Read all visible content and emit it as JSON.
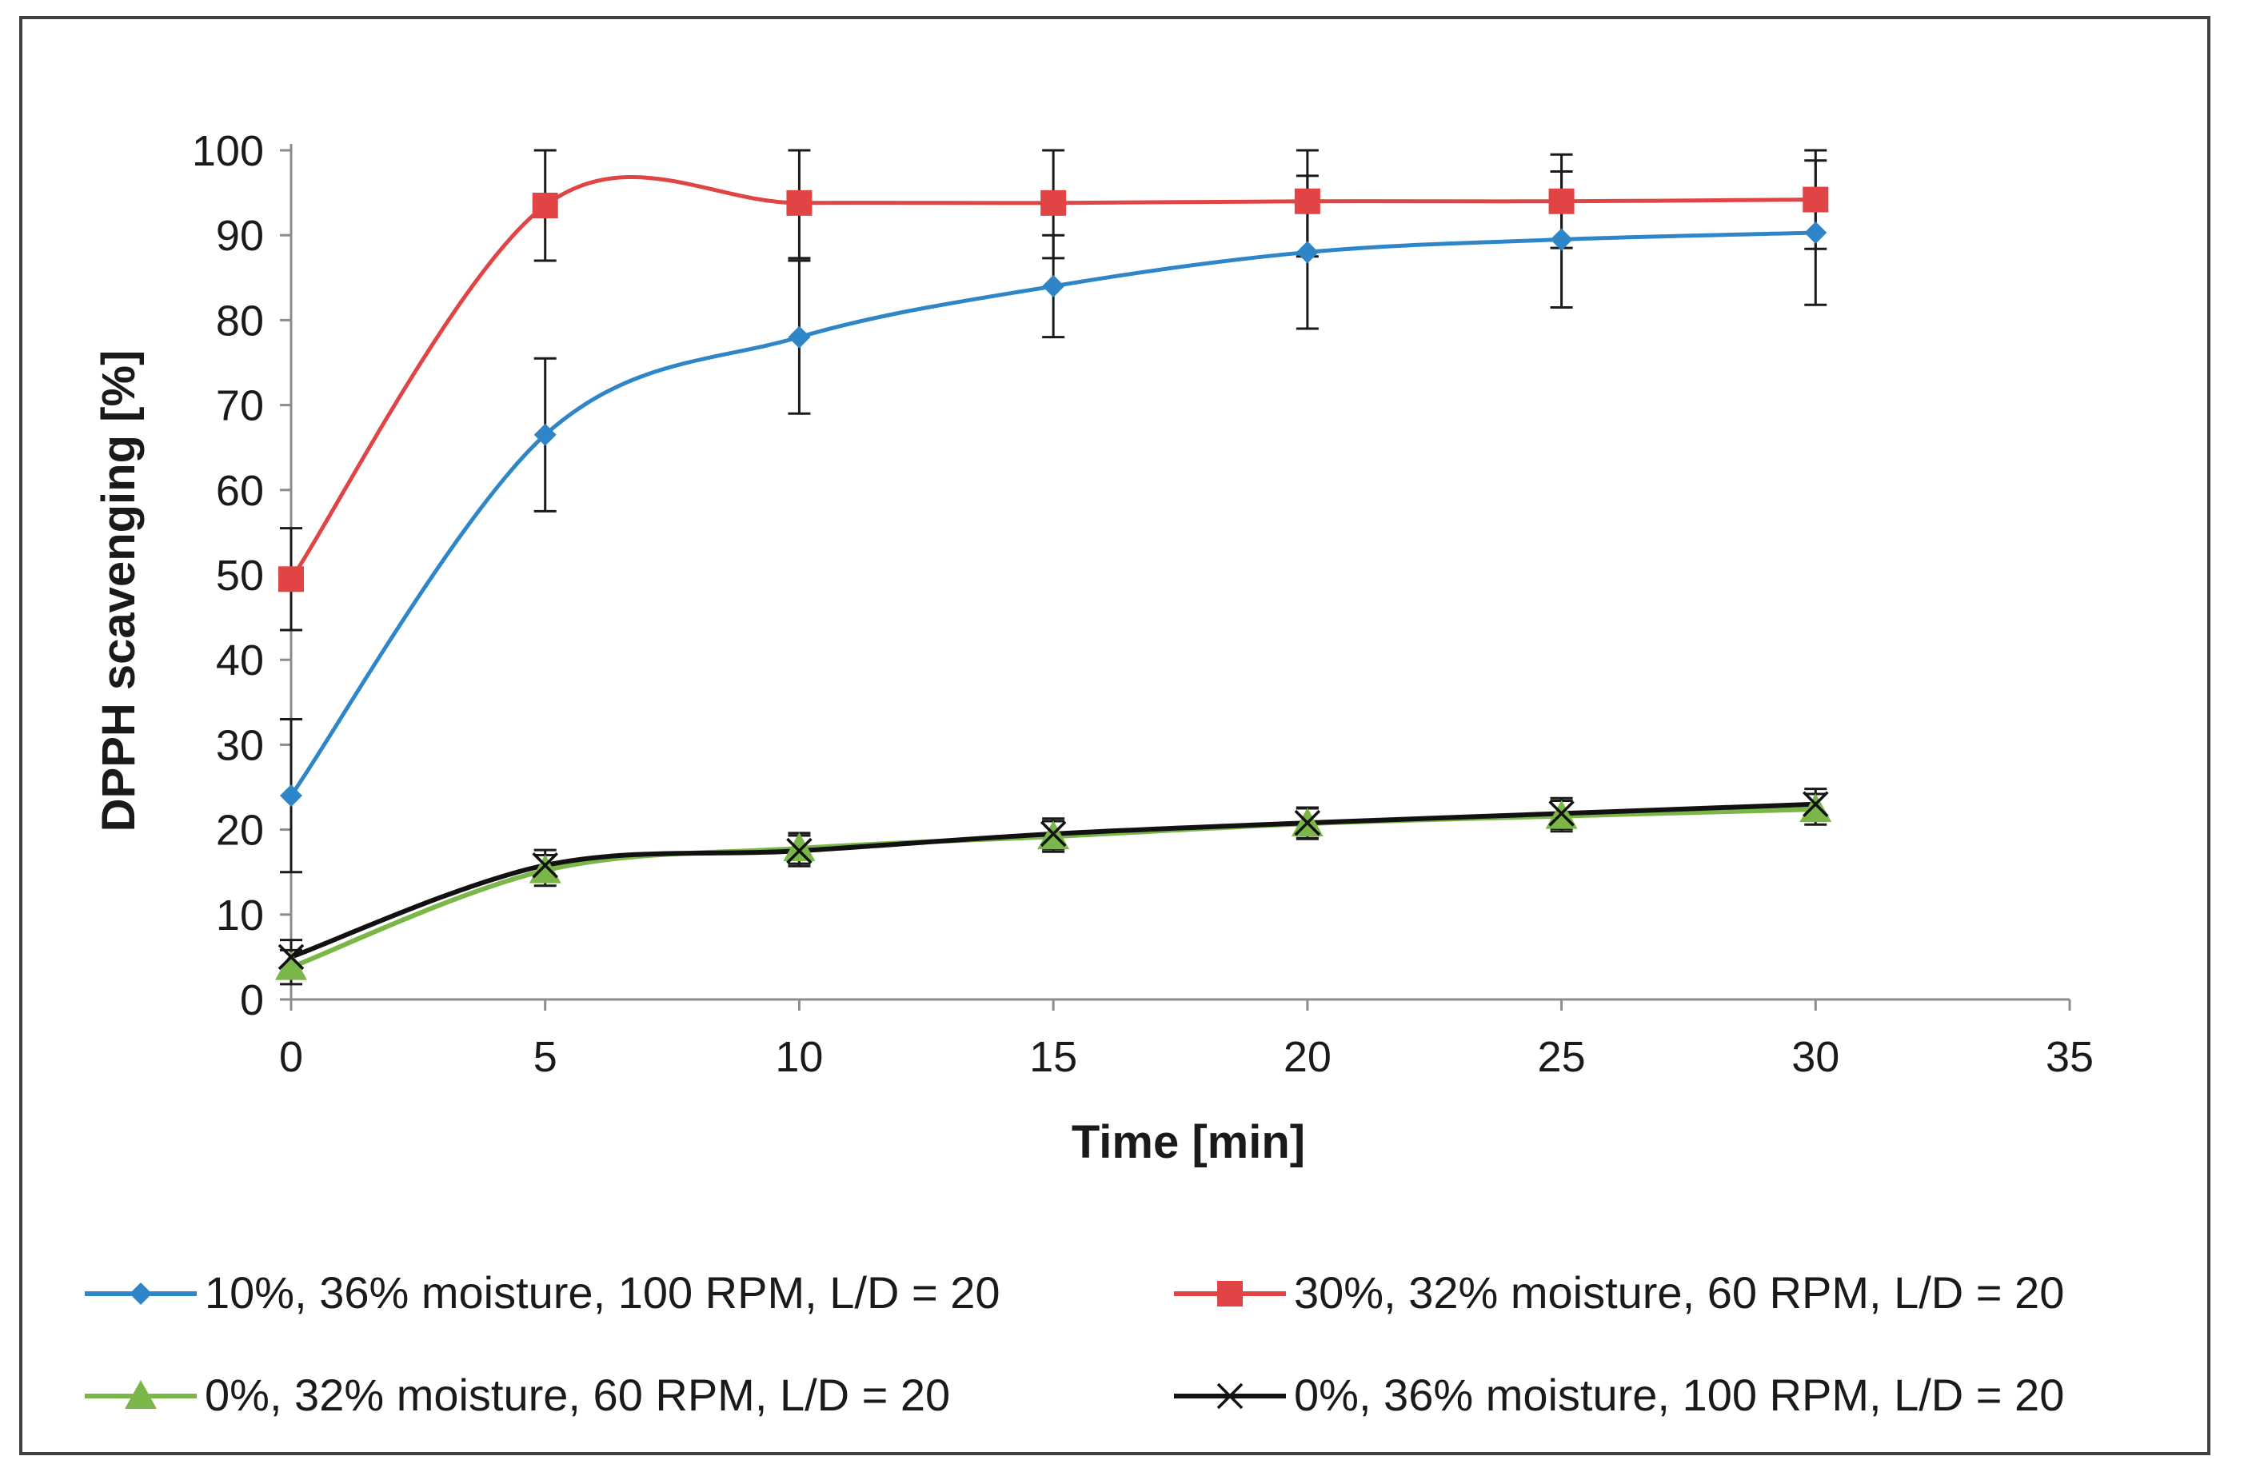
{
  "chart_data": {
    "type": "line",
    "title": "",
    "xlabel": "Time [min]",
    "ylabel": "DPPH scavenging [%]",
    "xlim": [
      0,
      35
    ],
    "ylim": [
      0,
      100
    ],
    "x_ticks": [
      0,
      5,
      10,
      15,
      20,
      25,
      30,
      35
    ],
    "y_ticks": [
      0,
      10,
      20,
      30,
      40,
      50,
      60,
      70,
      80,
      90,
      100
    ],
    "grid": false,
    "legend_position": "bottom",
    "x": [
      0,
      5,
      10,
      15,
      20,
      25,
      30
    ],
    "series": [
      {
        "name": "10%, 36% moisture, 100 RPM, L/D = 20",
        "color": "#2e86c8",
        "marker": "diamond",
        "values": [
          24,
          66.5,
          78,
          84,
          88,
          89.5,
          90.3
        ],
        "error": [
          9,
          9,
          9,
          6,
          9,
          8,
          8.5
        ]
      },
      {
        "name": "30%, 32% moisture, 60 RPM, L/D = 20",
        "color": "#e04444",
        "marker": "square",
        "values": [
          49.5,
          93.5,
          93.8,
          93.8,
          94,
          94,
          94.2
        ],
        "error": [
          6,
          6.5,
          6.5,
          6.5,
          6.5,
          5.5,
          5.8
        ]
      },
      {
        "name": "0%, 32% moisture, 60 RPM, L/D = 20",
        "color": "#7ab648",
        "marker": "triangle",
        "values": [
          3.8,
          15.2,
          17.8,
          19.2,
          20.7,
          21.6,
          22.4
        ],
        "error": [
          2,
          1.8,
          1.8,
          1.8,
          1.8,
          1.8,
          1.8
        ]
      },
      {
        "name": "0%, 36% moisture, 100 RPM, L/D = 20",
        "color": "#111111",
        "marker": "x",
        "values": [
          5,
          15.8,
          17.5,
          19.5,
          20.8,
          21.9,
          23
        ],
        "error": [
          2,
          1.8,
          1.8,
          1.8,
          1.8,
          1.8,
          1.8
        ]
      }
    ]
  }
}
